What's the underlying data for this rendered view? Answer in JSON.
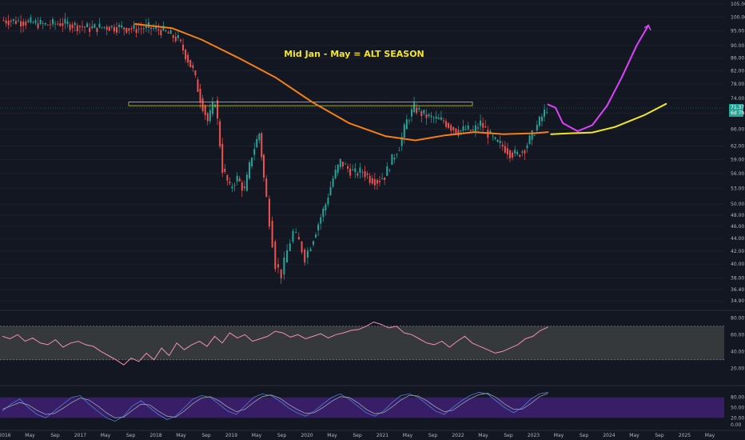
{
  "chart_data": {
    "type": "candlestick",
    "title": "",
    "annotation": "Mid Jan - May = ALT SEASON",
    "price_scale": "log",
    "ylim": [
      34.0,
      105.0
    ],
    "y_ticks": [
      "105.00",
      "100.00",
      "95.00",
      "90.00",
      "86.00",
      "82.00",
      "78.00",
      "74.00",
      "70.00",
      "66.00",
      "62.00",
      "59.00",
      "56.00",
      "53.00",
      "50.00",
      "48.00",
      "46.00",
      "44.00",
      "42.00",
      "40.00",
      "38.00",
      "36.40",
      "34.90"
    ],
    "last_price_label": "71.37",
    "countdown_label": "6d 7h",
    "x_labels": [
      "2016",
      "May",
      "Sep",
      "2017",
      "May",
      "Sep",
      "2018",
      "May",
      "Sep",
      "2019",
      "May",
      "Sep",
      "2020",
      "May",
      "Sep",
      "2021",
      "May",
      "Sep",
      "2022",
      "May",
      "Sep",
      "2023",
      "May",
      "Sep",
      "2024",
      "May",
      "Sep",
      "2025",
      "May"
    ],
    "resistance_zone": [
      72.0,
      73.0
    ],
    "price_series_weekly": [
      {
        "t": 0,
        "v": 98.8
      },
      {
        "t": 0.1,
        "v": 98.6
      },
      {
        "t": 0.2,
        "v": 98.0
      },
      {
        "t": 0.3,
        "v": 97.2
      },
      {
        "t": 0.4,
        "v": 97.8
      },
      {
        "t": 0.5,
        "v": 97.0
      },
      {
        "t": 0.6,
        "v": 96.0
      },
      {
        "t": 0.7,
        "v": 96.5
      },
      {
        "t": 0.8,
        "v": 96.3
      },
      {
        "t": 0.9,
        "v": 95.7
      },
      {
        "t": 1.0,
        "v": 96.2
      },
      {
        "t": 1.1,
        "v": 95.0
      },
      {
        "t": 1.2,
        "v": 92.0
      },
      {
        "t": 1.25,
        "v": 87.0
      },
      {
        "t": 1.3,
        "v": 82.0
      },
      {
        "t": 1.35,
        "v": 74.0
      },
      {
        "t": 1.4,
        "v": 68.0
      },
      {
        "t": 1.45,
        "v": 73.5
      },
      {
        "t": 1.5,
        "v": 57.0
      },
      {
        "t": 1.55,
        "v": 53.0
      },
      {
        "t": 1.6,
        "v": 55.0
      },
      {
        "t": 1.65,
        "v": 52.5
      },
      {
        "t": 1.7,
        "v": 60.0
      },
      {
        "t": 1.75,
        "v": 65.0
      },
      {
        "t": 1.78,
        "v": 55.0
      },
      {
        "t": 1.82,
        "v": 47.0
      },
      {
        "t": 1.86,
        "v": 40.0
      },
      {
        "t": 1.9,
        "v": 38.5
      },
      {
        "t": 1.94,
        "v": 42.0
      },
      {
        "t": 1.98,
        "v": 45.0
      },
      {
        "t": 2.02,
        "v": 43.5
      },
      {
        "t": 2.06,
        "v": 41.0
      },
      {
        "t": 2.1,
        "v": 43.0
      },
      {
        "t": 2.15,
        "v": 46.5
      },
      {
        "t": 2.2,
        "v": 50.0
      },
      {
        "t": 2.25,
        "v": 55.0
      },
      {
        "t": 2.3,
        "v": 58.5
      },
      {
        "t": 2.35,
        "v": 57.0
      },
      {
        "t": 2.4,
        "v": 56.0
      },
      {
        "t": 2.45,
        "v": 56.5
      },
      {
        "t": 2.5,
        "v": 55.0
      },
      {
        "t": 2.55,
        "v": 54.5
      },
      {
        "t": 2.6,
        "v": 55.5
      },
      {
        "t": 2.65,
        "v": 59.0
      },
      {
        "t": 2.7,
        "v": 62.0
      },
      {
        "t": 2.75,
        "v": 68.0
      },
      {
        "t": 2.8,
        "v": 71.5
      },
      {
        "t": 2.85,
        "v": 70.0
      },
      {
        "t": 2.9,
        "v": 69.0
      },
      {
        "t": 2.95,
        "v": 68.5
      },
      {
        "t": 3.0,
        "v": 68.0
      },
      {
        "t": 3.05,
        "v": 66.5
      },
      {
        "t": 3.1,
        "v": 65.5
      },
      {
        "t": 3.15,
        "v": 66.0
      },
      {
        "t": 3.2,
        "v": 65.5
      },
      {
        "t": 3.25,
        "v": 67.5
      },
      {
        "t": 3.3,
        "v": 65.0
      },
      {
        "t": 3.35,
        "v": 63.0
      },
      {
        "t": 3.4,
        "v": 62.0
      },
      {
        "t": 3.45,
        "v": 60.5
      },
      {
        "t": 3.5,
        "v": 60.0
      },
      {
        "t": 3.55,
        "v": 61.5
      },
      {
        "t": 3.6,
        "v": 64.5
      },
      {
        "t": 3.65,
        "v": 68.0
      },
      {
        "t": 3.7,
        "v": 71.4
      }
    ],
    "series": [
      {
        "name": "",
        "kind": "moving-average",
        "color": "#f57f17",
        "points": [
          {
            "t": 0.9,
            "v": 97.5
          },
          {
            "t": 1.15,
            "v": 96.0
          },
          {
            "t": 1.35,
            "v": 92.0
          },
          {
            "t": 1.6,
            "v": 86.0
          },
          {
            "t": 1.85,
            "v": 80.0
          },
          {
            "t": 2.1,
            "v": 73.0
          },
          {
            "t": 2.35,
            "v": 67.5
          },
          {
            "t": 2.6,
            "v": 64.3
          },
          {
            "t": 2.8,
            "v": 63.3
          },
          {
            "t": 3.0,
            "v": 64.5
          },
          {
            "t": 3.2,
            "v": 65.3
          },
          {
            "t": 3.4,
            "v": 64.8
          },
          {
            "t": 3.6,
            "v": 65.0
          },
          {
            "t": 3.7,
            "v": 65.3
          }
        ]
      },
      {
        "name": "",
        "kind": "projection",
        "color": "#f5e625",
        "points": [
          {
            "t": 3.72,
            "v": 64.8
          },
          {
            "t": 3.85,
            "v": 65.0
          },
          {
            "t": 4.0,
            "v": 65.2
          },
          {
            "t": 4.15,
            "v": 66.5
          },
          {
            "t": 4.35,
            "v": 69.5
          },
          {
            "t": 4.5,
            "v": 72.5
          }
        ]
      },
      {
        "name": "",
        "kind": "projection",
        "color": "#e040fb",
        "points": [
          {
            "t": 3.7,
            "v": 72.3
          },
          {
            "t": 3.75,
            "v": 71.5
          },
          {
            "t": 3.8,
            "v": 67.5
          },
          {
            "t": 3.9,
            "v": 65.5
          },
          {
            "t": 4.0,
            "v": 67.0
          },
          {
            "t": 4.1,
            "v": 72.0
          },
          {
            "t": 4.2,
            "v": 80.0
          },
          {
            "t": 4.3,
            "v": 90.0
          },
          {
            "t": 4.38,
            "v": 97.0
          }
        ]
      }
    ],
    "rsi": {
      "band": [
        30,
        70
      ],
      "y_ticks": [
        "80.00",
        "60.00",
        "40.00",
        "20.00"
      ],
      "values": [
        58,
        55,
        60,
        52,
        56,
        50,
        48,
        54,
        45,
        50,
        52,
        48,
        46,
        40,
        35,
        30,
        24,
        32,
        28,
        38,
        30,
        44,
        35,
        50,
        42,
        48,
        52,
        46,
        58,
        50,
        62,
        56,
        60,
        52,
        55,
        58,
        64,
        62,
        57,
        60,
        55,
        58,
        61,
        56,
        60,
        62,
        65,
        66,
        70,
        75,
        72,
        68,
        70,
        62,
        60,
        55,
        50,
        48,
        52,
        45,
        52,
        58,
        50,
        46,
        42,
        38,
        40,
        44,
        48,
        55,
        58,
        65,
        69
      ]
    },
    "stoch_rsi": {
      "band": [
        20,
        80
      ],
      "y_ticks": [
        "80.00",
        "50.00",
        "20.00",
        "0.00"
      ],
      "k": [
        40,
        60,
        75,
        50,
        30,
        20,
        40,
        60,
        80,
        85,
        60,
        40,
        20,
        10,
        25,
        55,
        70,
        50,
        30,
        15,
        25,
        50,
        75,
        85,
        80,
        60,
        40,
        30,
        55,
        80,
        90,
        85,
        70,
        50,
        35,
        25,
        40,
        60,
        80,
        90,
        75,
        55,
        35,
        25,
        40,
        65,
        85,
        90,
        80,
        60,
        40,
        30,
        50,
        70,
        85,
        95,
        90,
        70,
        50,
        35,
        50,
        75,
        90,
        95
      ],
      "d": [
        45,
        55,
        65,
        58,
        42,
        30,
        33,
        48,
        65,
        78,
        72,
        55,
        35,
        20,
        22,
        42,
        60,
        58,
        40,
        25,
        22,
        40,
        62,
        78,
        82,
        70,
        52,
        38,
        45,
        65,
        82,
        87,
        78,
        60,
        45,
        33,
        35,
        50,
        68,
        82,
        80,
        65,
        45,
        32,
        35,
        52,
        72,
        86,
        84,
        70,
        52,
        38,
        42,
        60,
        76,
        88,
        92,
        80,
        60,
        45,
        45,
        62,
        82,
        92
      ]
    }
  }
}
